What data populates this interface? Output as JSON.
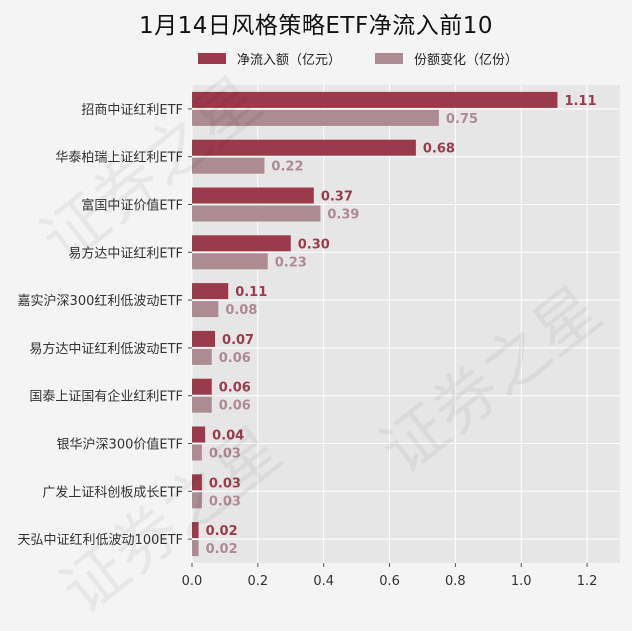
{
  "chart_data": {
    "type": "bar",
    "orientation": "horizontal",
    "title": "1月14日风格策略ETF净流入前10",
    "categories": [
      "招商中证红利ETF",
      "华泰柏瑞上证红利ETF",
      "富国中证价值ETF",
      "易方达中证红利ETF",
      "嘉实沪深300红利低波动ETF",
      "易方达中证红利低波动ETF",
      "国泰上证国有企业红利ETF",
      "银华沪深300价值ETF",
      "广发上证科创板成长ETF",
      "天弘中证红利低波动100ETF"
    ],
    "series": [
      {
        "name": "净流入额（亿元）",
        "color": "#9b3a4b",
        "values": [
          1.11,
          0.68,
          0.37,
          0.3,
          0.11,
          0.07,
          0.06,
          0.04,
          0.03,
          0.02
        ],
        "labels": [
          "1.11",
          "0.68",
          "0.37",
          "0.30",
          "0.11",
          "0.07",
          "0.06",
          "0.04",
          "0.03",
          "0.02"
        ]
      },
      {
        "name": "份额变化（亿份）",
        "color": "#ac8b93",
        "values": [
          0.75,
          0.22,
          0.39,
          0.23,
          0.08,
          0.06,
          0.06,
          0.03,
          0.03,
          0.02
        ],
        "labels": [
          "0.75",
          "0.22",
          "0.39",
          "0.23",
          "0.08",
          "0.06",
          "0.06",
          "0.03",
          "0.03",
          "0.02"
        ]
      }
    ],
    "xlim": [
      0,
      1.3
    ],
    "xticks": [
      "0.0",
      "0.2",
      "0.4",
      "0.6",
      "0.8",
      "1.0",
      "1.2"
    ],
    "grid": true,
    "legend_position": "top"
  },
  "watermark_text": "证券之星"
}
